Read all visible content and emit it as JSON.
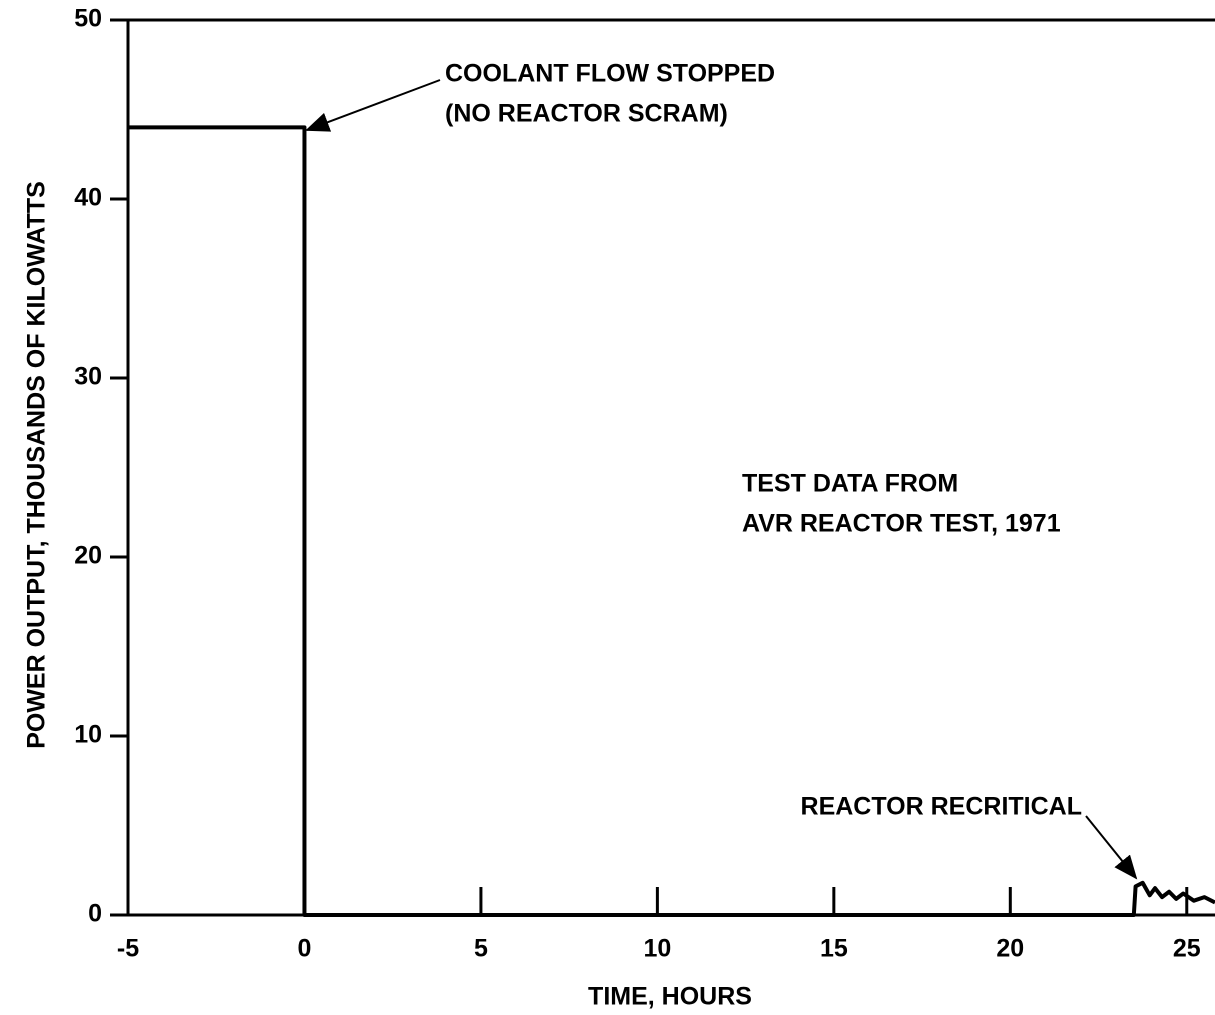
{
  "chart_data": {
    "type": "line",
    "xlabel": "TIME, HOURS",
    "ylabel": "POWER OUTPUT, THOUSANDS OF KILOWATTS",
    "x": [
      -5,
      0,
      0,
      23.5,
      23.55,
      23.75,
      23.95,
      24.1,
      24.3,
      24.5,
      24.7,
      24.9,
      25.2,
      25.5,
      25.8
    ],
    "values": [
      44,
      44,
      0,
      0,
      1.6,
      1.8,
      1.1,
      1.5,
      1.0,
      1.3,
      0.9,
      1.2,
      0.8,
      1.0,
      0.7
    ],
    "color": "#000000",
    "xlim": [
      -5,
      25.8
    ],
    "xticks": [
      -5,
      0,
      5,
      10,
      15,
      20,
      25
    ],
    "ylim": [
      0,
      50
    ],
    "yticks": [
      0,
      10,
      20,
      30,
      40,
      50
    ],
    "grid": false,
    "annotations": [
      {
        "lines": [
          "COOLANT FLOW STOPPED",
          "(NO REACTOR SCRAM)"
        ]
      },
      {
        "lines": [
          "TEST DATA FROM",
          "AVR REACTOR TEST, 1971"
        ]
      },
      {
        "lines": [
          "REACTOR RECRITICAL"
        ]
      }
    ]
  }
}
